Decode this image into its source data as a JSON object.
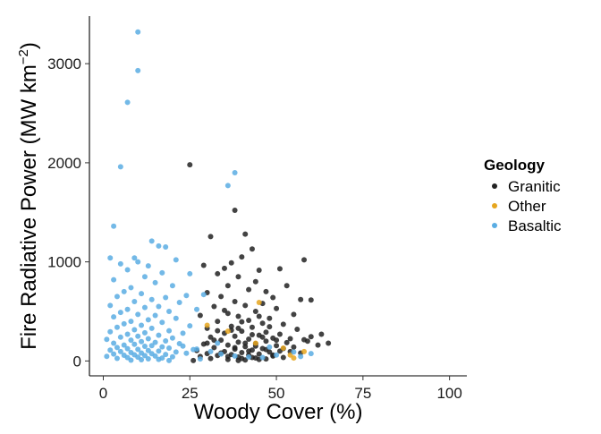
{
  "chart_data": {
    "type": "scatter",
    "xlabel": "Woody Cover (%)",
    "ylabel_main": "Fire Radiative Power (MW km",
    "ylabel_sup": "−2",
    "ylabel_close": ")",
    "xlim": [
      -4,
      105
    ],
    "ylim": [
      -150,
      3480
    ],
    "xticks": [
      0,
      25,
      50,
      75,
      100
    ],
    "yticks": [
      0,
      1000,
      2000,
      3000
    ],
    "grid": false,
    "legend": {
      "title": "Geology",
      "placement": "right"
    },
    "series": [
      {
        "name": "Granitic",
        "color": "#222222",
        "points": [
          [
            25,
            1980
          ],
          [
            38,
            1520
          ],
          [
            31,
            1255
          ],
          [
            41,
            1280
          ],
          [
            43,
            1130
          ],
          [
            40,
            1050
          ],
          [
            37,
            990
          ],
          [
            29,
            965
          ],
          [
            35,
            935
          ],
          [
            45,
            915
          ],
          [
            51,
            930
          ],
          [
            58,
            1020
          ],
          [
            33,
            880
          ],
          [
            39,
            850
          ],
          [
            44,
            800
          ],
          [
            36,
            760
          ],
          [
            42,
            720
          ],
          [
            47,
            700
          ],
          [
            30,
            690
          ],
          [
            53,
            760
          ],
          [
            34,
            650
          ],
          [
            49,
            640
          ],
          [
            57,
            620
          ],
          [
            60,
            615
          ],
          [
            38,
            600
          ],
          [
            46,
            580
          ],
          [
            41,
            560
          ],
          [
            32,
            550
          ],
          [
            50,
            530
          ],
          [
            44,
            500
          ],
          [
            36,
            480
          ],
          [
            55,
            470
          ],
          [
            28,
            460
          ],
          [
            39,
            450
          ],
          [
            48,
            430
          ],
          [
            42,
            410
          ],
          [
            33,
            400
          ],
          [
            46,
            380
          ],
          [
            52,
            370
          ],
          [
            37,
            350
          ],
          [
            43,
            340
          ],
          [
            30,
            330
          ],
          [
            56,
            320
          ],
          [
            40,
            300
          ],
          [
            47,
            290
          ],
          [
            35,
            280
          ],
          [
            51,
            270
          ],
          [
            45,
            260
          ],
          [
            38,
            250
          ],
          [
            63,
            270
          ],
          [
            60,
            245
          ],
          [
            31,
            240
          ],
          [
            49,
            230
          ],
          [
            42,
            220
          ],
          [
            58,
            215
          ],
          [
            34,
            210
          ],
          [
            47,
            200
          ],
          [
            39,
            190
          ],
          [
            53,
            185
          ],
          [
            44,
            175
          ],
          [
            29,
            170
          ],
          [
            36,
            160
          ],
          [
            50,
            155
          ],
          [
            41,
            145
          ],
          [
            55,
            140
          ],
          [
            32,
            135
          ],
          [
            46,
            125
          ],
          [
            38,
            120
          ],
          [
            43,
            110
          ],
          [
            27,
            105
          ],
          [
            51,
            100
          ],
          [
            35,
            95
          ],
          [
            48,
            90
          ],
          [
            40,
            85
          ],
          [
            57,
            80
          ],
          [
            30,
            75
          ],
          [
            45,
            70
          ],
          [
            37,
            65
          ],
          [
            42,
            60
          ],
          [
            33,
            55
          ],
          [
            49,
            50
          ],
          [
            28,
            45
          ],
          [
            39,
            40
          ],
          [
            52,
            35
          ],
          [
            44,
            30
          ],
          [
            31,
            25
          ],
          [
            47,
            20
          ],
          [
            36,
            15
          ],
          [
            41,
            10
          ],
          [
            26,
            5
          ],
          [
            62,
            160
          ],
          [
            65,
            180
          ],
          [
            59,
            200
          ],
          [
            54,
            225
          ],
          [
            43,
            265
          ],
          [
            37,
            310
          ],
          [
            48,
            345
          ],
          [
            40,
            395
          ],
          [
            45,
            450
          ],
          [
            35,
            510
          ],
          [
            33,
            305
          ],
          [
            39,
            330
          ],
          [
            46,
            240
          ],
          [
            50,
            210
          ],
          [
            41,
            180
          ],
          [
            44,
            150
          ],
          [
            38,
            135
          ],
          [
            47,
            115
          ],
          [
            42,
            100
          ],
          [
            34,
            80
          ],
          [
            49,
            60
          ],
          [
            36,
            45
          ],
          [
            43,
            35
          ],
          [
            40,
            25
          ],
          [
            45,
            15
          ],
          [
            39,
            5
          ],
          [
            52,
            125
          ],
          [
            54,
            95
          ],
          [
            30,
            180
          ],
          [
            32,
            210
          ]
        ]
      },
      {
        "name": "Other",
        "color": "#e6a61f",
        "points": [
          [
            45,
            590
          ],
          [
            30,
            360
          ],
          [
            36,
            300
          ],
          [
            52,
            130
          ],
          [
            54,
            60
          ],
          [
            55,
            30
          ],
          [
            44,
            180
          ],
          [
            58,
            95
          ]
        ]
      },
      {
        "name": "Basaltic",
        "color": "#5aade3",
        "points": [
          [
            10,
            3320
          ],
          [
            10,
            2930
          ],
          [
            7,
            2610
          ],
          [
            5,
            1960
          ],
          [
            38,
            1900
          ],
          [
            36,
            1770
          ],
          [
            3,
            1360
          ],
          [
            14,
            1210
          ],
          [
            16,
            1160
          ],
          [
            18,
            1150
          ],
          [
            2,
            1040
          ],
          [
            9,
            1040
          ],
          [
            21,
            1020
          ],
          [
            10,
            1000
          ],
          [
            5,
            980
          ],
          [
            13,
            960
          ],
          [
            7,
            920
          ],
          [
            17,
            890
          ],
          [
            25,
            880
          ],
          [
            12,
            850
          ],
          [
            3,
            820
          ],
          [
            15,
            790
          ],
          [
            20,
            760
          ],
          [
            8,
            740
          ],
          [
            6,
            700
          ],
          [
            11,
            680
          ],
          [
            24,
            660
          ],
          [
            29,
            670
          ],
          [
            4,
            650
          ],
          [
            18,
            640
          ],
          [
            14,
            620
          ],
          [
            9,
            600
          ],
          [
            22,
            590
          ],
          [
            2,
            560
          ],
          [
            16,
            550
          ],
          [
            12,
            540
          ],
          [
            7,
            520
          ],
          [
            27,
            520
          ],
          [
            19,
            500
          ],
          [
            5,
            490
          ],
          [
            10,
            470
          ],
          [
            15,
            460
          ],
          [
            3,
            445
          ],
          [
            21,
            430
          ],
          [
            13,
            415
          ],
          [
            8,
            400
          ],
          [
            17,
            390
          ],
          [
            6,
            375
          ],
          [
            11,
            360
          ],
          [
            25,
            355
          ],
          [
            4,
            340
          ],
          [
            14,
            330
          ],
          [
            9,
            315
          ],
          [
            19,
            305
          ],
          [
            2,
            295
          ],
          [
            12,
            285
          ],
          [
            23,
            280
          ],
          [
            7,
            270
          ],
          [
            16,
            260
          ],
          [
            10,
            250
          ],
          [
            5,
            240
          ],
          [
            20,
            232
          ],
          [
            13,
            225
          ],
          [
            1,
            218
          ],
          [
            8,
            210
          ],
          [
            18,
            202
          ],
          [
            11,
            195
          ],
          [
            15,
            188
          ],
          [
            3,
            180
          ],
          [
            22,
            175
          ],
          [
            9,
            168
          ],
          [
            6,
            160
          ],
          [
            14,
            155
          ],
          [
            12,
            148
          ],
          [
            17,
            142
          ],
          [
            4,
            136
          ],
          [
            19,
            130
          ],
          [
            7,
            124
          ],
          [
            10,
            118
          ],
          [
            26,
            115
          ],
          [
            2,
            110
          ],
          [
            13,
            105
          ],
          [
            16,
            100
          ],
          [
            5,
            95
          ],
          [
            21,
            90
          ],
          [
            8,
            85
          ],
          [
            11,
            80
          ],
          [
            24,
            78
          ],
          [
            14,
            74
          ],
          [
            3,
            70
          ],
          [
            18,
            66
          ],
          [
            9,
            62
          ],
          [
            6,
            58
          ],
          [
            12,
            54
          ],
          [
            15,
            50
          ],
          [
            1,
            46
          ],
          [
            20,
            42
          ],
          [
            10,
            38
          ],
          [
            7,
            34
          ],
          [
            17,
            30
          ],
          [
            4,
            26
          ],
          [
            13,
            22
          ],
          [
            28,
            20
          ],
          [
            16,
            16
          ],
          [
            11,
            12
          ],
          [
            8,
            8
          ],
          [
            19,
            5
          ],
          [
            23,
            150
          ],
          [
            27,
            120
          ],
          [
            31,
            95
          ],
          [
            34,
            70
          ],
          [
            38,
            50
          ],
          [
            42,
            40
          ],
          [
            46,
            35
          ],
          [
            50,
            60
          ],
          [
            55,
            90
          ],
          [
            57,
            45
          ],
          [
            60,
            75
          ],
          [
            48,
            140
          ],
          [
            33,
            180
          ]
        ]
      }
    ]
  }
}
